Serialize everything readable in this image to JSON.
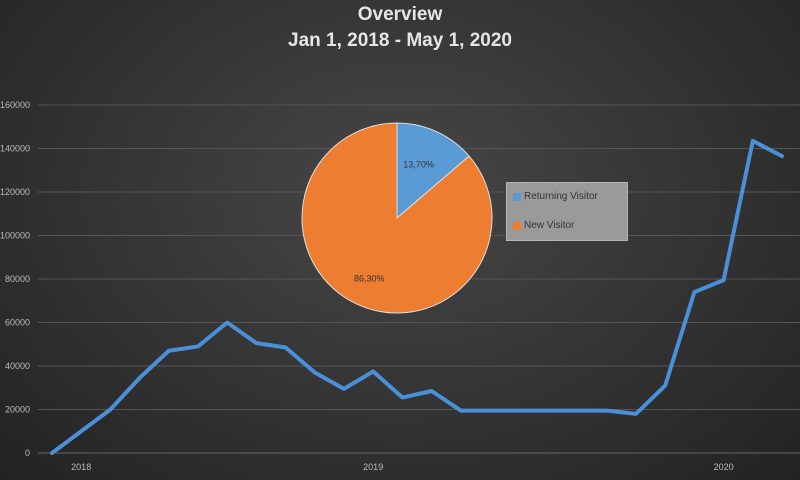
{
  "chart_data": [
    {
      "type": "line",
      "title": "Overview",
      "subtitle": "Jan 1, 2018 - May 1, 2020",
      "x_tick_labels": [
        {
          "index": 1,
          "label": "2018"
        },
        {
          "index": 11,
          "label": "2019"
        },
        {
          "index": 23,
          "label": "2020"
        }
      ],
      "y_ticks": [
        0,
        20000,
        40000,
        60000,
        80000,
        100000,
        120000,
        140000,
        160000
      ],
      "ylim": [
        0,
        160000
      ],
      "grid": true,
      "color": "#4a90d9",
      "values": [
        0,
        10000,
        20000,
        34500,
        47000,
        49000,
        60000,
        50500,
        48500,
        37000,
        29500,
        37500,
        25500,
        28500,
        19500,
        19500,
        19500,
        19500,
        19500,
        19500,
        18000,
        31000,
        74000,
        79500,
        143500,
        136500
      ]
    },
    {
      "type": "pie",
      "slices": [
        {
          "name": "Returning Visitor",
          "value": 13.7,
          "label": "13,70%",
          "color": "#5b9bd5"
        },
        {
          "name": "New Visitor",
          "value": 86.3,
          "label": "86,30%",
          "color": "#ed7d31"
        }
      ],
      "legend": "right"
    }
  ]
}
